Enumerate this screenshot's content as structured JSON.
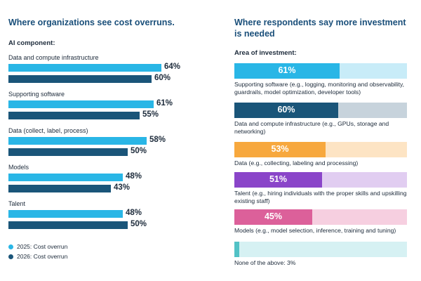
{
  "left": {
    "title": "Where organizations see cost overruns.",
    "subtitle": "AI component:",
    "legend": [
      {
        "label": "2025: Cost overrun",
        "color": "#29b6e6"
      },
      {
        "label": "2026: Cost overrun",
        "color": "#1a5579"
      }
    ]
  },
  "right": {
    "title_line1": "Where respondents say more investment",
    "title_line2": "is needed",
    "subtitle": "Area of investment:"
  },
  "chart_data": [
    {
      "type": "bar",
      "orientation": "horizontal",
      "title": "Where organizations see cost overruns.",
      "axis_title": "AI component:",
      "categories": [
        "Data and compute infrastructure",
        "Supporting software",
        "Data (collect, label, process)",
        "Models",
        "Talent"
      ],
      "series": [
        {
          "name": "2025: Cost overrun",
          "color": "#29b6e6",
          "values": [
            64,
            61,
            58,
            48,
            48
          ],
          "labels": [
            "64%",
            "61%",
            "58%",
            "48%",
            "48%"
          ]
        },
        {
          "name": "2026: Cost overrun",
          "color": "#1a5579",
          "values": [
            60,
            55,
            50,
            43,
            50
          ],
          "labels": [
            "60%",
            "55%",
            "50%",
            "43%",
            "50%"
          ]
        }
      ],
      "xlim": [
        0,
        100
      ]
    },
    {
      "type": "bar",
      "orientation": "horizontal",
      "title": "Where respondents say more investment is needed",
      "axis_title": "Area of investment:",
      "items": [
        {
          "name": "Supporting software",
          "desc": " (e.g., logging, monitoring and observability, guardrails, model optimization, developer tools)",
          "value": 61,
          "label": "61%",
          "color": "#29b6e6",
          "track": "#c8ecf8"
        },
        {
          "name": "Data and compute infrastructure",
          "desc": " (e.g., GPUs, storage and networking)",
          "value": 60,
          "label": "60%",
          "color": "#1a5579",
          "track": "#c7d3dc"
        },
        {
          "name": "Data",
          "desc": " (e.g., collecting, labeling and processing)",
          "value": 53,
          "label": "53%",
          "color": "#f7a83e",
          "track": "#fde4c4"
        },
        {
          "name": "Talent",
          "desc": " (e.g., hiring individuals with the proper skills and upskilling existing staff)",
          "value": 51,
          "label": "51%",
          "color": "#8a45c9",
          "track": "#e1cdf1"
        },
        {
          "name": "Models",
          "desc": " (e.g., model selection, inference, training and tuning)",
          "value": 45,
          "label": "45%",
          "color": "#dc609a",
          "track": "#f6cfe0"
        },
        {
          "name": "None of the above: 3%",
          "desc": "",
          "value": 3,
          "label": "",
          "color": "#52c2c6",
          "track": "#d6f1f3"
        }
      ],
      "xlim": [
        0,
        100
      ]
    }
  ]
}
